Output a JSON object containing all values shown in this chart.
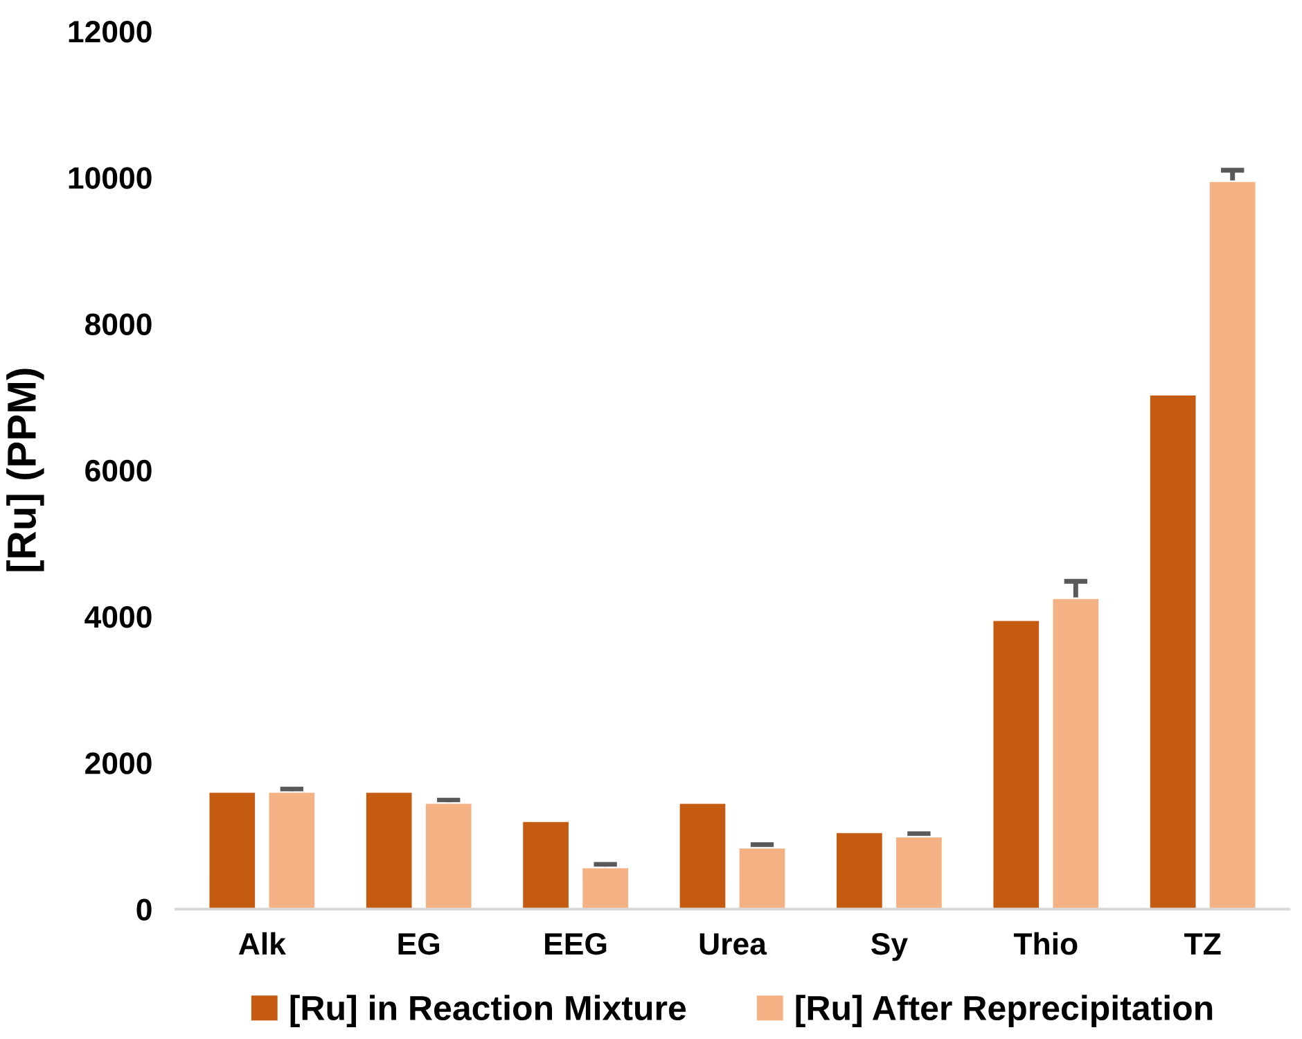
{
  "chart_data": {
    "type": "bar",
    "ylabel": "[Ru] (PPM)",
    "categories": [
      "Alk",
      "EG",
      "EEG",
      "Urea",
      "Sy",
      "Thio",
      "TZ"
    ],
    "series": [
      {
        "name": "[Ru] in Reaction Mixture",
        "color": "#c55a11",
        "values": [
          1600,
          1600,
          1200,
          1450,
          1050,
          3950,
          7030
        ]
      },
      {
        "name": "[Ru] After Reprecipitation",
        "color": "#f4b183",
        "values": [
          1600,
          1450,
          570,
          840,
          990,
          4250,
          9950
        ],
        "errors": [
          40,
          40,
          40,
          40,
          40,
          230,
          150
        ]
      }
    ],
    "ylim": [
      0,
      12000
    ],
    "yticks": [
      0,
      2000,
      4000,
      6000,
      8000,
      10000,
      12000
    ],
    "grid": false,
    "legend": "bottom"
  }
}
